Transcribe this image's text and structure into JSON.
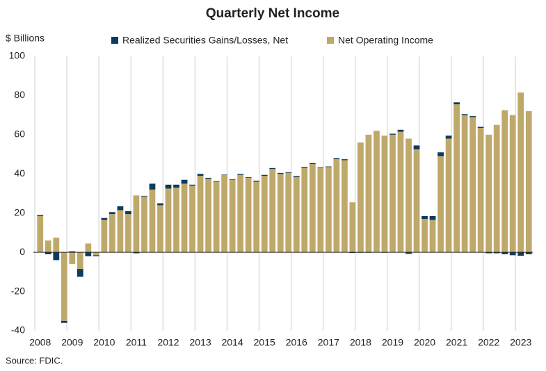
{
  "chart_data": {
    "type": "stacked_bar",
    "title": "Quarterly Net Income",
    "y_label": "$ Billions",
    "source": "Source: FDIC.",
    "categories": [
      "2008",
      null,
      null,
      null,
      "2009",
      null,
      null,
      null,
      "2010",
      null,
      null,
      null,
      "2011",
      null,
      null,
      null,
      "2012",
      null,
      null,
      null,
      "2013",
      null,
      null,
      null,
      "2014",
      null,
      null,
      null,
      "2015",
      null,
      null,
      null,
      "2016",
      null,
      null,
      null,
      "2017",
      null,
      null,
      null,
      "2018",
      null,
      null,
      null,
      "2019",
      null,
      null,
      null,
      "2020",
      null,
      null,
      null,
      "2021",
      null,
      null,
      null,
      "2022",
      null,
      null,
      null,
      "2023",
      null
    ],
    "series": [
      {
        "name": "Net Operating Income",
        "color": "#bfa96a",
        "values": [
          18.5,
          6,
          7.5,
          -35,
          -6,
          -8.5,
          4.5,
          -1.5,
          16.5,
          19.5,
          21.5,
          19.5,
          29,
          28.5,
          32,
          24,
          32.5,
          33,
          35,
          34,
          39,
          37.5,
          36,
          39.5,
          37,
          39.5,
          38,
          36,
          39,
          42.5,
          40,
          40.5,
          38.5,
          43,
          45,
          43,
          43.5,
          47.5,
          47,
          25.5,
          56,
          60,
          62,
          59.5,
          60,
          61.5,
          58,
          52.5,
          17,
          16.5,
          49,
          58,
          75.5,
          70,
          69,
          63.5,
          60,
          65,
          72.5,
          70,
          81.5,
          72
        ]
      },
      {
        "name": "Realized Securities Gains/Losses, Net",
        "color": "#0d3b5e",
        "values": [
          0.5,
          -1,
          -4,
          -1,
          0.5,
          -4,
          -2,
          -0.5,
          1,
          1,
          2,
          1.5,
          -0.5,
          0.3,
          3,
          1,
          2,
          1.5,
          2,
          0.5,
          1,
          0.5,
          0.3,
          0.2,
          0.3,
          0.5,
          0.3,
          0.5,
          0.5,
          0.5,
          0.5,
          0.3,
          0.5,
          0.5,
          0.5,
          0.3,
          0.3,
          0.5,
          0.5,
          -0.3,
          -0.2,
          -0.2,
          -0.1,
          -0.2,
          0.5,
          1,
          -0.8,
          2,
          1.5,
          2,
          2,
          1.5,
          1,
          0.5,
          0.5,
          0.5,
          -0.5,
          -0.5,
          -1,
          -1.5,
          -1.8,
          -1
        ]
      }
    ],
    "ylim": [
      -40,
      100
    ],
    "yticks": [
      -40,
      -20,
      0,
      20,
      40,
      60,
      80,
      100
    ]
  }
}
